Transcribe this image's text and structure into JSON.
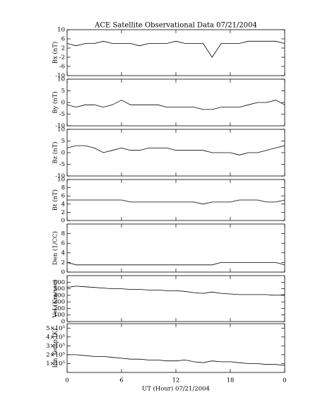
{
  "chart_data": [
    {
      "type": "line",
      "title": "ACE Satellite Observational Data   07/21/2004",
      "ylabel": "Bx (nT)",
      "color": "#000000",
      "x": [
        0,
        1,
        2,
        3,
        4,
        5,
        6,
        7,
        8,
        9,
        10,
        11,
        12,
        13,
        14,
        15,
        16,
        17,
        18,
        19,
        20,
        21,
        22,
        23,
        24
      ],
      "values": [
        4,
        3,
        4,
        4,
        5,
        4,
        4,
        4,
        3,
        4,
        4,
        4,
        5,
        4,
        4,
        4,
        -2,
        4,
        4,
        4,
        5,
        5,
        5,
        5,
        4
      ],
      "xlim": [
        0,
        24
      ],
      "ylim": [
        -10,
        10
      ],
      "yticks": [
        -10,
        -6,
        -2,
        2,
        6,
        10
      ]
    },
    {
      "type": "line",
      "ylabel": "By (nT)",
      "color": "#000000",
      "x": [
        0,
        1,
        2,
        3,
        4,
        5,
        6,
        7,
        8,
        9,
        10,
        11,
        12,
        13,
        14,
        15,
        16,
        17,
        18,
        19,
        20,
        21,
        22,
        23,
        24
      ],
      "values": [
        -1,
        -2,
        -1,
        -1,
        -2,
        -1,
        1,
        -1,
        -1,
        -1,
        -1,
        -2,
        -2,
        -2,
        -2,
        -3,
        -3,
        -2,
        -2,
        -2,
        -1,
        0,
        0,
        1,
        -1
      ],
      "xlim": [
        0,
        24
      ],
      "ylim": [
        -10,
        10
      ],
      "yticks": [
        -10,
        -5,
        0,
        5,
        10
      ]
    },
    {
      "type": "line",
      "ylabel": "Bz (nT)",
      "color": "#000000",
      "x": [
        0,
        1,
        2,
        3,
        4,
        5,
        6,
        7,
        8,
        9,
        10,
        11,
        12,
        13,
        14,
        15,
        16,
        17,
        18,
        19,
        20,
        21,
        22,
        23,
        24
      ],
      "values": [
        2,
        3,
        3,
        2,
        0,
        1,
        2,
        1,
        1,
        2,
        2,
        2,
        1,
        1,
        1,
        1,
        0,
        0,
        0,
        -1,
        0,
        0,
        1,
        2,
        3
      ],
      "xlim": [
        0,
        24
      ],
      "ylim": [
        -10,
        10
      ],
      "yticks": [
        -10,
        -5,
        0,
        5,
        10
      ]
    },
    {
      "type": "line",
      "ylabel": "Bt (nT)",
      "color": "#000000",
      "x": [
        0,
        1,
        2,
        3,
        4,
        5,
        6,
        7,
        8,
        9,
        10,
        11,
        12,
        13,
        14,
        15,
        16,
        17,
        18,
        19,
        20,
        21,
        22,
        23,
        24
      ],
      "values": [
        5,
        5,
        5,
        5,
        5,
        5,
        5,
        4.5,
        4.5,
        4.5,
        4.5,
        4.5,
        4.5,
        4.5,
        4.5,
        4,
        4.5,
        4.5,
        4.5,
        5,
        5,
        5,
        4.5,
        4.5,
        5
      ],
      "xlim": [
        0,
        24
      ],
      "ylim": [
        0,
        10
      ],
      "yticks": [
        0,
        2,
        4,
        6,
        8,
        10
      ]
    },
    {
      "type": "line",
      "ylabel": "Den (1/CC)",
      "color": "#000000",
      "x": [
        0,
        1,
        2,
        3,
        4,
        5,
        6,
        7,
        8,
        9,
        10,
        11,
        12,
        13,
        14,
        15,
        16,
        17,
        18,
        19,
        20,
        21,
        22,
        23,
        24
      ],
      "values": [
        2,
        1.5,
        1.5,
        1.5,
        1.5,
        1.5,
        1.5,
        1.5,
        1.5,
        1.5,
        1.5,
        1.5,
        1.5,
        1.5,
        1.5,
        1.5,
        1.5,
        2,
        2,
        2,
        2,
        2,
        2,
        2,
        1.5
      ],
      "xlim": [
        0,
        24
      ],
      "ylim": [
        0,
        10
      ],
      "yticks": [
        0,
        2,
        4,
        6,
        8
      ]
    },
    {
      "type": "line",
      "ylabel": "Vel (Km/sec)",
      "color": "#000000",
      "x": [
        0,
        1,
        2,
        3,
        4,
        5,
        6,
        7,
        8,
        9,
        10,
        11,
        12,
        13,
        14,
        15,
        16,
        17,
        18,
        19,
        20,
        21,
        22,
        23,
        24
      ],
      "values": [
        520,
        540,
        530,
        520,
        510,
        500,
        500,
        490,
        490,
        480,
        480,
        470,
        470,
        460,
        440,
        430,
        450,
        430,
        420,
        410,
        410,
        410,
        410,
        400,
        410
      ],
      "xlim": [
        0,
        24
      ],
      "ylim": [
        0,
        700
      ],
      "yticks": [
        0,
        100,
        200,
        300,
        400,
        500,
        600
      ]
    },
    {
      "type": "line",
      "ylabel": "Ion Temp (K)",
      "xlabel": "UT (Hour)   07/21/2004",
      "color": "#000000",
      "x": [
        0,
        1,
        2,
        3,
        4,
        5,
        6,
        7,
        8,
        9,
        10,
        11,
        12,
        13,
        14,
        15,
        16,
        17,
        18,
        19,
        20,
        21,
        22,
        23,
        24
      ],
      "values": [
        200000,
        200000,
        190000,
        180000,
        180000,
        170000,
        160000,
        150000,
        150000,
        140000,
        140000,
        130000,
        130000,
        140000,
        120000,
        110000,
        130000,
        120000,
        120000,
        110000,
        100000,
        100000,
        90000,
        90000,
        80000
      ],
      "xlim": [
        0,
        24
      ],
      "ylim": [
        0,
        550000
      ],
      "yticks": [
        {
          "value": 100000,
          "label": "1×10⁵"
        },
        {
          "value": 200000,
          "label": "2×10⁵"
        },
        {
          "value": 300000,
          "label": "3×10⁵"
        },
        {
          "value": 400000,
          "label": "4×10⁵"
        },
        {
          "value": 500000,
          "label": "5×10⁵"
        }
      ],
      "xticks": [
        0,
        6,
        12,
        18,
        {
          "value": 24,
          "label": "0"
        }
      ]
    }
  ]
}
